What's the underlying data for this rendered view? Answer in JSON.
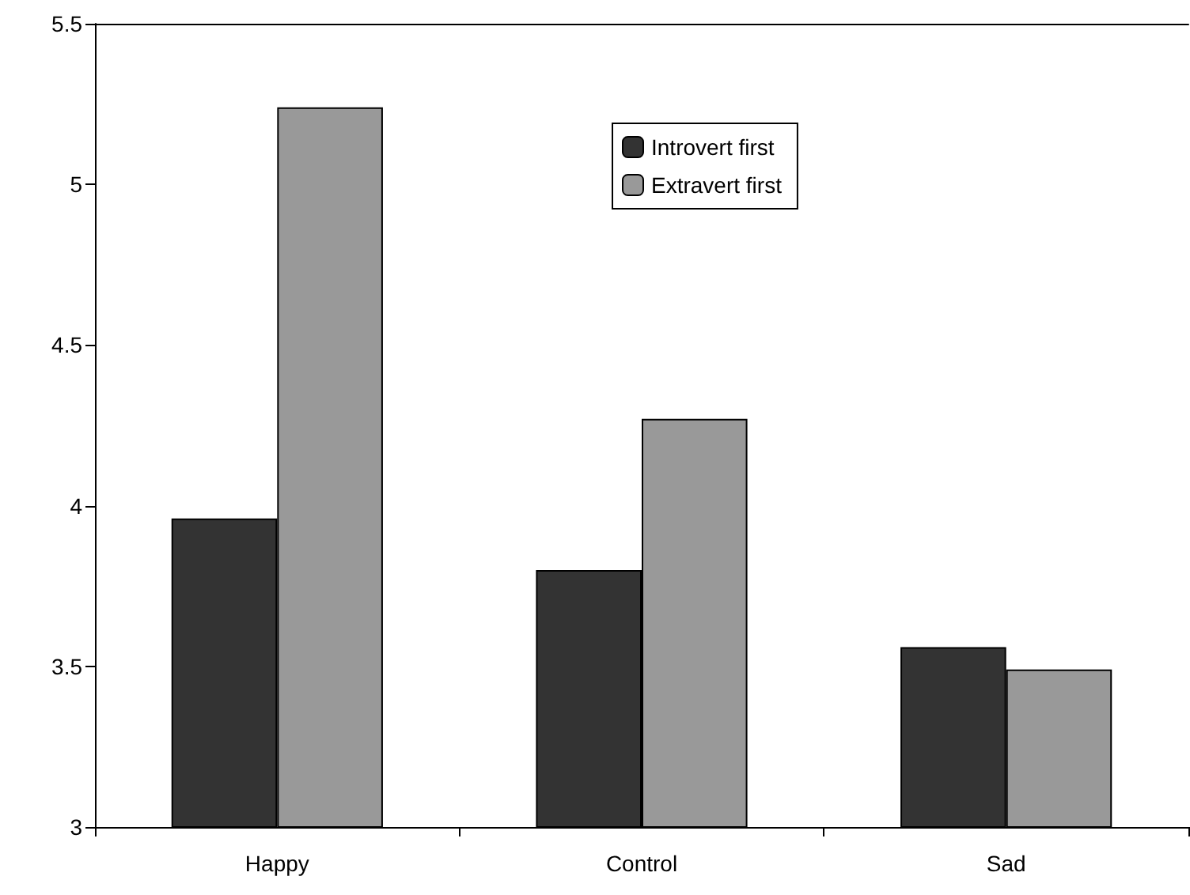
{
  "chart_data": {
    "type": "bar",
    "categories": [
      "Happy",
      "Control",
      "Sad"
    ],
    "series": [
      {
        "name": "Introvert first",
        "color": "#333333",
        "values": [
          3.96,
          3.8,
          3.56
        ]
      },
      {
        "name": "Extravert first",
        "color": "#999999",
        "values": [
          5.24,
          4.27,
          3.49
        ]
      }
    ],
    "ylim": [
      3,
      5.5
    ],
    "yticks": [
      3,
      3.5,
      4,
      4.5,
      5,
      5.5
    ],
    "grid": false,
    "legend": "top right"
  }
}
